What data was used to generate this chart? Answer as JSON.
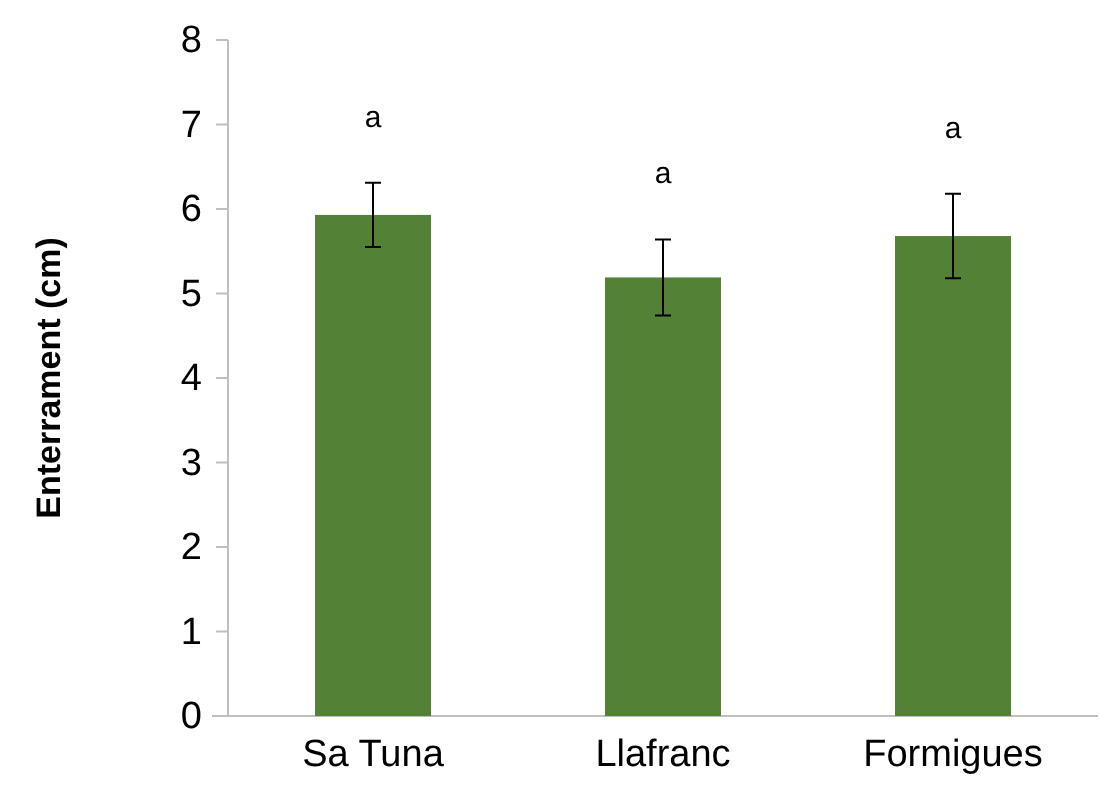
{
  "chart_data": {
    "type": "bar",
    "ylabel": "Enterrament (cm)",
    "categories": [
      "Sa Tuna",
      "Llafranc",
      "Formigues"
    ],
    "values": [
      5.93,
      5.19,
      5.68
    ],
    "errors": [
      0.38,
      0.45,
      0.5
    ],
    "color": "#538135",
    "ylim": [
      0,
      8
    ],
    "yticks": [
      0,
      1,
      2,
      3,
      4,
      5,
      6,
      7,
      8
    ],
    "grid": false,
    "annotations": [
      "a",
      "a",
      "a"
    ]
  }
}
